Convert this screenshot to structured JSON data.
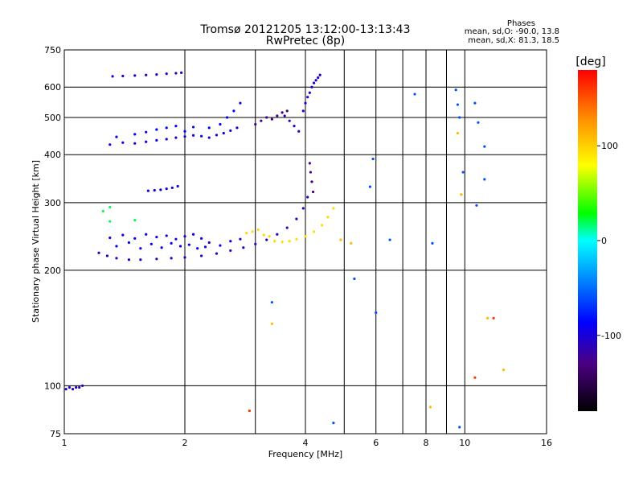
{
  "chart_data": {
    "type": "scatter",
    "title": "Tromsø 20121205 13:12:00-13:13:43",
    "subtitle": "RwPretec (8p)",
    "stats": {
      "heading": "Phases",
      "line1": "mean, sd,O: -90.0, 13.8",
      "line2": "mean, sd,X:  81.3, 18.5"
    },
    "xlabel": "Frequency [MHz]",
    "ylabel": "Stationary phase Virtual Height [km]",
    "xscale": "log",
    "yscale": "log",
    "xlim": [
      1,
      16
    ],
    "ylim": [
      75,
      750
    ],
    "xticks": [
      1,
      2,
      4,
      6,
      8,
      10,
      16
    ],
    "xtick_labels": [
      "1",
      "2",
      "4",
      "6",
      "8",
      "10",
      "16"
    ],
    "xminor": [
      3,
      5,
      7,
      9
    ],
    "yticks": [
      75,
      100,
      200,
      300,
      400,
      500,
      600,
      750
    ],
    "ytick_labels": [
      "75",
      "100",
      "200",
      "300",
      "400",
      "500",
      "600",
      "750"
    ],
    "grid": true,
    "colorbar": {
      "label": "[deg]",
      "range": [
        -180,
        180
      ],
      "ticks": [
        100,
        0,
        -100
      ],
      "tick_labels": [
        "100",
        "0",
        "-100"
      ]
    },
    "series": [
      {
        "points": [
          [
            1.01,
            98
          ],
          [
            1.03,
            99
          ],
          [
            1.05,
            98
          ],
          [
            1.07,
            99
          ],
          [
            1.09,
            99
          ],
          [
            1.11,
            100
          ]
        ],
        "phase": -105
      },
      {
        "points": [
          [
            1.22,
            222
          ],
          [
            1.28,
            218
          ],
          [
            1.35,
            215
          ],
          [
            1.45,
            213
          ],
          [
            1.55,
            213
          ],
          [
            1.7,
            214
          ],
          [
            1.85,
            215
          ],
          [
            2.0,
            216
          ],
          [
            2.2,
            218
          ],
          [
            2.4,
            221
          ],
          [
            2.6,
            225
          ],
          [
            2.8,
            229
          ],
          [
            3.0,
            234
          ],
          [
            3.2,
            240
          ],
          [
            3.4,
            248
          ],
          [
            3.6,
            258
          ],
          [
            3.8,
            272
          ],
          [
            3.95,
            290
          ],
          [
            4.05,
            310
          ]
        ],
        "phase": -110
      },
      {
        "points": [
          [
            1.3,
            243
          ],
          [
            1.4,
            247
          ],
          [
            1.5,
            242
          ],
          [
            1.6,
            248
          ],
          [
            1.7,
            244
          ],
          [
            1.8,
            246
          ],
          [
            1.9,
            241
          ],
          [
            2.0,
            245
          ],
          [
            2.1,
            248
          ],
          [
            2.2,
            242
          ],
          [
            2.3,
            236
          ],
          [
            2.45,
            232
          ],
          [
            2.6,
            238
          ],
          [
            2.75,
            241
          ]
        ],
        "phase": -95
      },
      {
        "points": [
          [
            1.35,
            231
          ],
          [
            1.45,
            236
          ],
          [
            1.55,
            228
          ],
          [
            1.65,
            234
          ],
          [
            1.75,
            229
          ],
          [
            1.85,
            235
          ],
          [
            1.95,
            231
          ],
          [
            2.05,
            233
          ],
          [
            2.15,
            228
          ],
          [
            2.25,
            230
          ]
        ],
        "phase": -88
      },
      {
        "points": [
          [
            2.85,
            250
          ],
          [
            2.95,
            252
          ],
          [
            3.05,
            255
          ],
          [
            3.15,
            247
          ],
          [
            3.25,
            245
          ],
          [
            3.35,
            238
          ],
          [
            3.5,
            237
          ],
          [
            3.65,
            238
          ],
          [
            3.8,
            241
          ],
          [
            4.0,
            245
          ],
          [
            4.2,
            252
          ],
          [
            4.4,
            262
          ],
          [
            4.55,
            275
          ],
          [
            4.7,
            290
          ]
        ],
        "phase": 95
      },
      {
        "points": [
          [
            1.3,
            425
          ],
          [
            1.4,
            430
          ],
          [
            1.5,
            428
          ],
          [
            1.6,
            432
          ],
          [
            1.7,
            436
          ],
          [
            1.8,
            439
          ],
          [
            1.9,
            443
          ],
          [
            2.0,
            446
          ],
          [
            2.1,
            449
          ],
          [
            2.2,
            447
          ],
          [
            2.3,
            443
          ],
          [
            2.4,
            450
          ],
          [
            2.5,
            455
          ],
          [
            2.6,
            462
          ],
          [
            2.7,
            470
          ]
        ],
        "phase": -95
      },
      {
        "points": [
          [
            1.35,
            445
          ],
          [
            1.5,
            452
          ],
          [
            1.6,
            458
          ],
          [
            1.7,
            465
          ],
          [
            1.8,
            470
          ],
          [
            1.9,
            475
          ],
          [
            2.0,
            460
          ],
          [
            2.1,
            472
          ],
          [
            2.3,
            470
          ],
          [
            2.45,
            480
          ],
          [
            2.55,
            500
          ],
          [
            2.65,
            520
          ],
          [
            2.75,
            545
          ]
        ],
        "phase": -85
      },
      {
        "points": [
          [
            1.32,
            640
          ],
          [
            1.4,
            641
          ],
          [
            1.5,
            643
          ],
          [
            1.6,
            645
          ],
          [
            1.7,
            647
          ],
          [
            1.8,
            650
          ],
          [
            1.9,
            652
          ],
          [
            1.96,
            654
          ]
        ],
        "phase": -105
      },
      {
        "points": [
          [
            1.62,
            322
          ],
          [
            1.68,
            323
          ],
          [
            1.74,
            324
          ],
          [
            1.8,
            326
          ],
          [
            1.86,
            328
          ],
          [
            1.92,
            331
          ]
        ],
        "phase": -95
      },
      {
        "points": [
          [
            3.0,
            480
          ],
          [
            3.1,
            490
          ],
          [
            3.2,
            500
          ],
          [
            3.3,
            495
          ],
          [
            3.4,
            505
          ],
          [
            3.5,
            515
          ],
          [
            3.6,
            520
          ]
        ],
        "phase": -125
      },
      {
        "points": [
          [
            3.55,
            505
          ],
          [
            3.65,
            490
          ],
          [
            3.75,
            475
          ],
          [
            3.85,
            460
          ]
        ],
        "phase": -110
      },
      {
        "points": [
          [
            3.95,
            520
          ],
          [
            4.0,
            545
          ],
          [
            4.05,
            565
          ],
          [
            4.1,
            580
          ],
          [
            4.15,
            600
          ],
          [
            4.2,
            615
          ],
          [
            4.25,
            625
          ],
          [
            4.3,
            635
          ],
          [
            4.35,
            645
          ]
        ],
        "phase": -100
      },
      {
        "points": [
          [
            4.1,
            380
          ],
          [
            4.12,
            360
          ],
          [
            4.15,
            340
          ],
          [
            4.18,
            320
          ]
        ],
        "phase": -130
      },
      {
        "points": [
          [
            5.9,
            390
          ],
          [
            5.8,
            330
          ],
          [
            7.5,
            575
          ],
          [
            9.5,
            590
          ],
          [
            9.6,
            540
          ],
          [
            9.7,
            500
          ],
          [
            9.9,
            360
          ],
          [
            10.6,
            545
          ],
          [
            10.8,
            485
          ],
          [
            11.2,
            420
          ],
          [
            11.2,
            345
          ],
          [
            10.7,
            295
          ],
          [
            6.5,
            240
          ],
          [
            8.3,
            235
          ],
          [
            5.3,
            190
          ],
          [
            6.0,
            155
          ],
          [
            3.3,
            165
          ],
          [
            4.7,
            80
          ],
          [
            9.7,
            78
          ]
        ],
        "phase": -60
      },
      {
        "points": [
          [
            9.6,
            455
          ],
          [
            5.2,
            235
          ],
          [
            4.9,
            240
          ],
          [
            3.3,
            145
          ],
          [
            11.4,
            150
          ],
          [
            12.5,
            110
          ],
          [
            8.2,
            88
          ],
          [
            9.8,
            315
          ]
        ],
        "phase": 110
      },
      {
        "points": [
          [
            2.9,
            86
          ],
          [
            10.6,
            105
          ],
          [
            11.8,
            150
          ]
        ],
        "phase": 160
      },
      {
        "points": [
          [
            1.5,
            270
          ],
          [
            1.3,
            268
          ],
          [
            1.25,
            285
          ],
          [
            1.3,
            292
          ]
        ],
        "phase": 20
      }
    ]
  }
}
